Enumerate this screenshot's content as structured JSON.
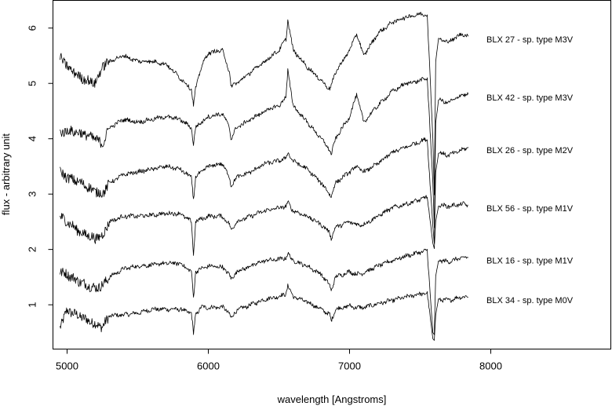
{
  "chart_data": {
    "type": "line",
    "title": "",
    "xlabel": "wavelength [Angstroms]",
    "ylabel": "flux - arbitrary unit",
    "xlim": [
      4900,
      8850
    ],
    "ylim": [
      0.2,
      6.5
    ],
    "xticks": [
      5000,
      6000,
      7000,
      8000
    ],
    "yticks": [
      1,
      2,
      3,
      4,
      5,
      6
    ],
    "grid": false,
    "legend": "none",
    "line_color": "#000000",
    "series": [
      {
        "name": "BLX 34 - sp. type M0V",
        "offset": 0.0,
        "x": [
          4950,
          5000,
          5100,
          5200,
          5250,
          5300,
          5400,
          5500,
          5600,
          5700,
          5800,
          5880,
          5895,
          5910,
          5950,
          6000,
          6100,
          6150,
          6160,
          6200,
          6300,
          6400,
          6500,
          6550,
          6563,
          6600,
          6700,
          6800,
          6860,
          6870,
          6900,
          7000,
          7050,
          7100,
          7200,
          7300,
          7400,
          7500,
          7550,
          7590,
          7600,
          7610,
          7630,
          7700,
          7800,
          7840
        ],
        "y": [
          0.6,
          0.9,
          0.78,
          0.65,
          0.6,
          0.8,
          0.82,
          0.85,
          0.92,
          0.92,
          0.92,
          0.85,
          0.48,
          0.82,
          0.96,
          0.95,
          0.96,
          0.85,
          0.75,
          0.9,
          1.0,
          1.1,
          1.15,
          1.2,
          1.35,
          1.15,
          1.05,
          0.92,
          0.82,
          0.7,
          0.92,
          0.98,
          0.95,
          0.95,
          1.02,
          1.08,
          1.14,
          1.2,
          1.2,
          0.4,
          0.36,
          0.8,
          1.1,
          1.08,
          1.15,
          1.14
        ]
      },
      {
        "name": "BLX 16 - sp. type M1V",
        "offset": 0.65,
        "x": [
          4950,
          5000,
          5100,
          5200,
          5250,
          5300,
          5400,
          5500,
          5600,
          5700,
          5800,
          5880,
          5895,
          5910,
          5950,
          6000,
          6100,
          6150,
          6160,
          6200,
          6300,
          6400,
          6500,
          6550,
          6563,
          6600,
          6700,
          6800,
          6860,
          6870,
          6900,
          7000,
          7050,
          7100,
          7200,
          7300,
          7400,
          7500,
          7550,
          7590,
          7600,
          7610,
          7630,
          7700,
          7800,
          7840
        ],
        "y": [
          1.6,
          1.55,
          1.4,
          1.3,
          1.35,
          1.5,
          1.65,
          1.7,
          1.72,
          1.75,
          1.75,
          1.6,
          1.12,
          1.6,
          1.65,
          1.7,
          1.68,
          1.55,
          1.45,
          1.6,
          1.7,
          1.8,
          1.82,
          1.85,
          1.92,
          1.8,
          1.7,
          1.55,
          1.35,
          1.25,
          1.5,
          1.6,
          1.55,
          1.58,
          1.7,
          1.8,
          1.88,
          1.95,
          1.98,
          0.5,
          0.45,
          1.5,
          1.8,
          1.78,
          1.85,
          1.85
        ]
      },
      {
        "name": "BLX 56 - sp. type M1V",
        "offset": 1.3,
        "x": [
          4950,
          5000,
          5100,
          5200,
          5250,
          5300,
          5400,
          5500,
          5600,
          5700,
          5800,
          5880,
          5895,
          5910,
          5950,
          6000,
          6100,
          6150,
          6160,
          6200,
          6300,
          6400,
          6500,
          6550,
          6563,
          6600,
          6700,
          6800,
          6860,
          6870,
          6900,
          7000,
          7050,
          7100,
          7200,
          7300,
          7400,
          7500,
          7550,
          7590,
          7600,
          7610,
          7630,
          7700,
          7800,
          7840
        ],
        "y": [
          2.6,
          2.5,
          2.3,
          2.2,
          2.25,
          2.5,
          2.6,
          2.6,
          2.62,
          2.65,
          2.65,
          2.5,
          1.9,
          2.5,
          2.55,
          2.6,
          2.6,
          2.45,
          2.35,
          2.5,
          2.6,
          2.7,
          2.75,
          2.78,
          2.85,
          2.7,
          2.6,
          2.45,
          2.3,
          2.2,
          2.4,
          2.5,
          2.45,
          2.45,
          2.6,
          2.75,
          2.82,
          2.9,
          2.95,
          2.1,
          2.0,
          2.5,
          2.8,
          2.78,
          2.82,
          2.8
        ]
      },
      {
        "name": "BLX 26 - sp. type M2V",
        "offset": 2.1,
        "x": [
          4950,
          5000,
          5100,
          5200,
          5250,
          5300,
          5400,
          5500,
          5600,
          5700,
          5800,
          5880,
          5895,
          5910,
          5950,
          6000,
          6100,
          6150,
          6160,
          6200,
          6300,
          6400,
          6500,
          6550,
          6563,
          6600,
          6700,
          6800,
          6860,
          6870,
          6900,
          7000,
          7050,
          7100,
          7200,
          7300,
          7400,
          7500,
          7550,
          7590,
          7600,
          7610,
          7630,
          7700,
          7800,
          7840
        ],
        "y": [
          3.4,
          3.3,
          3.2,
          3.05,
          3.0,
          3.2,
          3.35,
          3.4,
          3.45,
          3.5,
          3.45,
          3.3,
          2.9,
          3.3,
          3.4,
          3.5,
          3.55,
          3.3,
          3.15,
          3.3,
          3.4,
          3.55,
          3.6,
          3.65,
          3.75,
          3.6,
          3.45,
          3.2,
          3.0,
          2.95,
          3.2,
          3.4,
          3.5,
          3.4,
          3.55,
          3.75,
          3.85,
          3.95,
          4.0,
          2.4,
          2.1,
          3.4,
          3.75,
          3.7,
          3.8,
          3.85
        ]
      },
      {
        "name": "BLX 42 - sp. type M3V",
        "offset": 2.9,
        "x": [
          4950,
          5000,
          5100,
          5200,
          5250,
          5300,
          5400,
          5500,
          5600,
          5700,
          5800,
          5880,
          5895,
          5910,
          5950,
          6000,
          6100,
          6150,
          6160,
          6200,
          6300,
          6400,
          6500,
          6550,
          6563,
          6600,
          6700,
          6800,
          6860,
          6870,
          6900,
          7000,
          7050,
          7100,
          7200,
          7300,
          7400,
          7500,
          7550,
          7590,
          7600,
          7610,
          7630,
          7700,
          7800,
          7840
        ],
        "y": [
          4.1,
          4.15,
          4.1,
          4.0,
          3.9,
          4.2,
          4.35,
          4.3,
          4.35,
          4.4,
          4.35,
          4.2,
          3.9,
          4.2,
          4.3,
          4.4,
          4.45,
          4.2,
          4.0,
          4.2,
          4.35,
          4.5,
          4.6,
          4.75,
          5.25,
          4.6,
          4.3,
          4.0,
          3.8,
          3.7,
          4.0,
          4.4,
          4.8,
          4.3,
          4.6,
          4.85,
          5.0,
          5.05,
          5.1,
          3.2,
          2.4,
          4.3,
          4.7,
          4.65,
          4.8,
          4.8
        ]
      },
      {
        "name": "BLX 27 - sp. type M3V",
        "offset": 3.6,
        "x": [
          4950,
          5000,
          5100,
          5200,
          5250,
          5300,
          5400,
          5500,
          5600,
          5700,
          5800,
          5880,
          5895,
          5910,
          5950,
          6000,
          6100,
          6150,
          6160,
          6200,
          6300,
          6400,
          6500,
          6550,
          6563,
          6600,
          6700,
          6800,
          6860,
          6870,
          6900,
          7000,
          7050,
          7100,
          7200,
          7300,
          7400,
          7500,
          7550,
          7590,
          7600,
          7610,
          7630,
          7700,
          7800,
          7840
        ],
        "y": [
          5.5,
          5.3,
          5.1,
          5.0,
          5.3,
          5.4,
          5.5,
          5.4,
          5.4,
          5.35,
          5.1,
          4.9,
          4.6,
          4.9,
          5.3,
          5.55,
          5.6,
          5.2,
          4.95,
          5.0,
          5.2,
          5.4,
          5.6,
          5.8,
          6.15,
          5.6,
          5.3,
          5.05,
          4.9,
          4.95,
          5.2,
          5.6,
          5.9,
          5.5,
          5.9,
          6.1,
          6.2,
          6.25,
          6.25,
          4.0,
          3.0,
          5.4,
          5.8,
          5.75,
          5.9,
          5.85
        ]
      }
    ]
  }
}
